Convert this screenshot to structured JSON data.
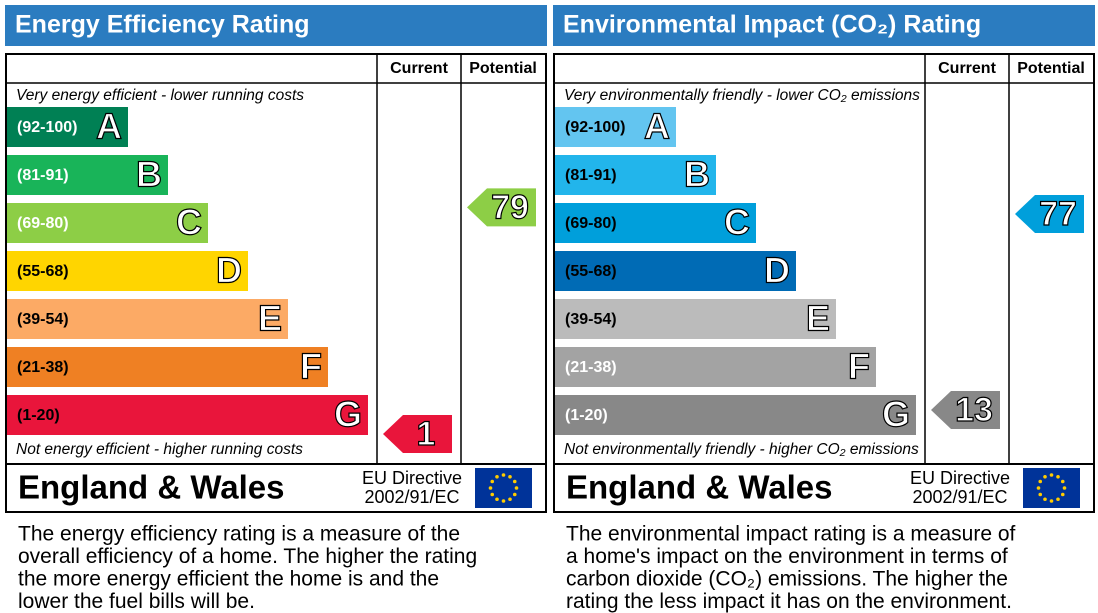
{
  "panels": [
    {
      "title": "Energy Efficiency Rating",
      "columns": [
        "Current",
        "Potential"
      ],
      "top_note": "Very energy efficient - lower running costs",
      "bottom_note": "Not energy efficient - higher running costs",
      "bands": [
        {
          "range": "(92-100)",
          "letter": "A",
          "color": "#008054",
          "label_color": "#ffffff"
        },
        {
          "range": "(81-91)",
          "letter": "B",
          "color": "#19b459",
          "label_color": "#ffffff"
        },
        {
          "range": "(69-80)",
          "letter": "C",
          "color": "#8dce46",
          "label_color": "#ffffff"
        },
        {
          "range": "(55-68)",
          "letter": "D",
          "color": "#ffd500",
          "label_color": "#000000"
        },
        {
          "range": "(39-54)",
          "letter": "E",
          "color": "#fcaa65",
          "label_color": "#000000"
        },
        {
          "range": "(21-38)",
          "letter": "F",
          "color": "#ef8023",
          "label_color": "#000000"
        },
        {
          "range": "(1-20)",
          "letter": "G",
          "color": "#e9153b",
          "label_color": "#000000"
        }
      ],
      "current": 1,
      "potential": 79,
      "region": "England & Wales",
      "directive": [
        "EU Directive",
        "2002/91/EC"
      ],
      "description": [
        "The energy efficiency rating is a measure of the",
        "overall efficiency of a home. The higher the rating",
        "the more energy efficient the home is and the",
        "lower the fuel bills will be."
      ]
    },
    {
      "title": "Environmental Impact (CO₂) Rating",
      "columns": [
        "Current",
        "Potential"
      ],
      "top_note": "Very environmentally friendly - lower CO₂ emissions",
      "bottom_note": "Not environmentally friendly - higher CO₂ emissions",
      "bands": [
        {
          "range": "(92-100)",
          "letter": "A",
          "color": "#63c5f0",
          "label_color": "#000000"
        },
        {
          "range": "(81-91)",
          "letter": "B",
          "color": "#22b5eb",
          "label_color": "#000000"
        },
        {
          "range": "(69-80)",
          "letter": "C",
          "color": "#009fdb",
          "label_color": "#000000"
        },
        {
          "range": "(55-68)",
          "letter": "D",
          "color": "#006bb5",
          "label_color": "#000000"
        },
        {
          "range": "(39-54)",
          "letter": "E",
          "color": "#bbbbbb",
          "label_color": "#000000"
        },
        {
          "range": "(21-38)",
          "letter": "F",
          "color": "#a3a3a3",
          "label_color": "#ffffff"
        },
        {
          "range": "(1-20)",
          "letter": "G",
          "color": "#888888",
          "label_color": "#ffffff"
        }
      ],
      "current": 13,
      "potential": 77,
      "region": "England & Wales",
      "directive": [
        "EU Directive",
        "2002/91/EC"
      ],
      "description": [
        "The environmental impact rating is a measure of",
        "a home's impact on the environment in terms of",
        "carbon dioxide (CO₂) emissions. The higher the",
        "rating the less impact it has on the environment."
      ]
    }
  ]
}
